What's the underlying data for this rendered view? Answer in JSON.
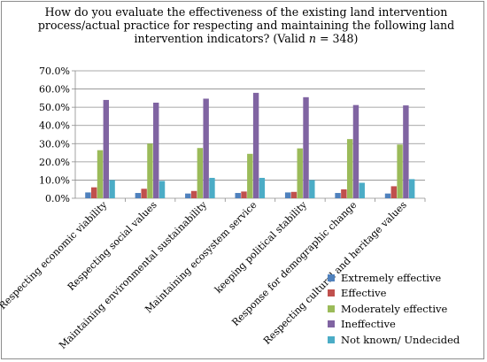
{
  "chart_data": {
    "type": "bar",
    "title_parts": [
      "How do you evaluate the effectiveness of the existing land intervention process/actual practice for respecting and maintaining the following land intervention indicators? (Valid ",
      "n",
      " = 348)"
    ],
    "categories": [
      "Respecting economic viability",
      "Respecting social values",
      "Maintaining environmental sustainability",
      "Maintaining ecosystem service",
      "keeping political stability",
      "Response for demographic change",
      "Respecting  cultural and heritage values"
    ],
    "series": [
      {
        "name": "Extremely effective",
        "color": "#4f81bd",
        "values": [
          3.2,
          2.9,
          2.6,
          2.9,
          3.2,
          2.9,
          2.6
        ]
      },
      {
        "name": "Effective",
        "color": "#c0504d",
        "values": [
          6.0,
          5.2,
          4.0,
          3.7,
          3.5,
          4.9,
          6.6
        ]
      },
      {
        "name": "Moderately effective",
        "color": "#9bbb59",
        "values": [
          26.4,
          30.0,
          27.6,
          24.4,
          27.4,
          32.5,
          29.5
        ]
      },
      {
        "name": "Ineffective",
        "color": "#8064a2",
        "values": [
          54.0,
          52.5,
          54.7,
          57.9,
          55.5,
          51.2,
          51.0
        ]
      },
      {
        "name": "Not known/ Undecided",
        "color": "#4bacc6",
        "values": [
          10.0,
          9.5,
          11.2,
          11.2,
          10.0,
          8.5,
          10.5
        ]
      }
    ],
    "y_ticks": [
      "0.0%",
      "10.0%",
      "20.0%",
      "30.0%",
      "40.0%",
      "50.0%",
      "60.0%",
      "70.0%"
    ],
    "ylim": [
      0,
      70
    ],
    "grid": true,
    "legend_position": "bottom-right"
  }
}
